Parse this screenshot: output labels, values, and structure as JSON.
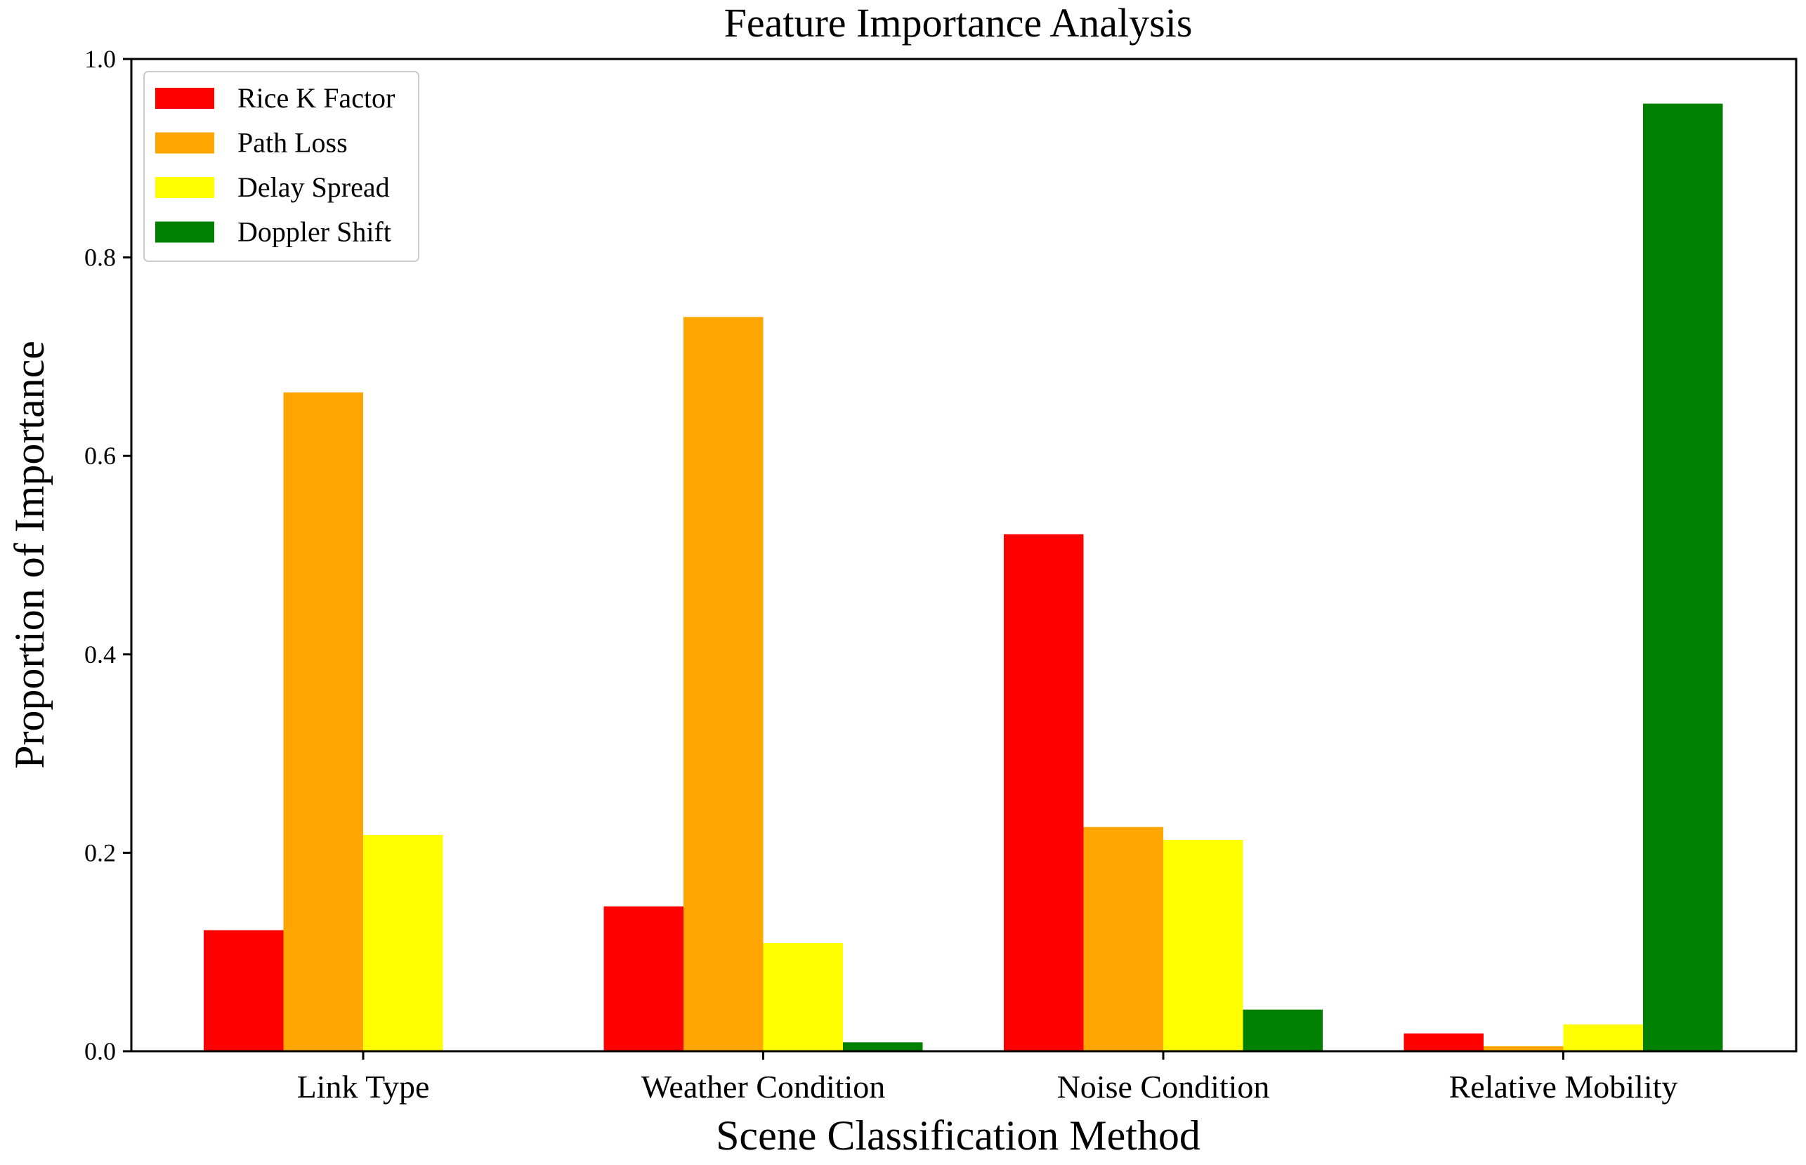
{
  "chart_data": {
    "type": "bar",
    "title": "Feature Importance Analysis",
    "xlabel": "Scene Classification Method",
    "ylabel": "Proportion of Importance",
    "categories": [
      "Link Type",
      "Weather Condition",
      "Noise Condition",
      "Relative Mobility"
    ],
    "series": [
      {
        "name": "Rice K Factor",
        "color": "#ff0000",
        "values": [
          0.122,
          0.146,
          0.521,
          0.018
        ]
      },
      {
        "name": "Path Loss",
        "color": "#ffa500",
        "values": [
          0.664,
          0.74,
          0.226,
          0.005
        ]
      },
      {
        "name": "Delay Spread",
        "color": "#ffff00",
        "values": [
          0.218,
          0.109,
          0.213,
          0.027
        ]
      },
      {
        "name": "Doppler Shift",
        "color": "#008000",
        "values": [
          0.0,
          0.009,
          0.042,
          0.955
        ]
      }
    ],
    "ylim": [
      0,
      1.0
    ],
    "yticks": [
      "0.0",
      "0.2",
      "0.4",
      "0.6",
      "0.8",
      "1.0"
    ],
    "ytick_values": [
      0,
      0.2,
      0.4,
      0.6,
      0.8,
      1.0
    ],
    "grid": false,
    "legend_position": "upper-left"
  }
}
